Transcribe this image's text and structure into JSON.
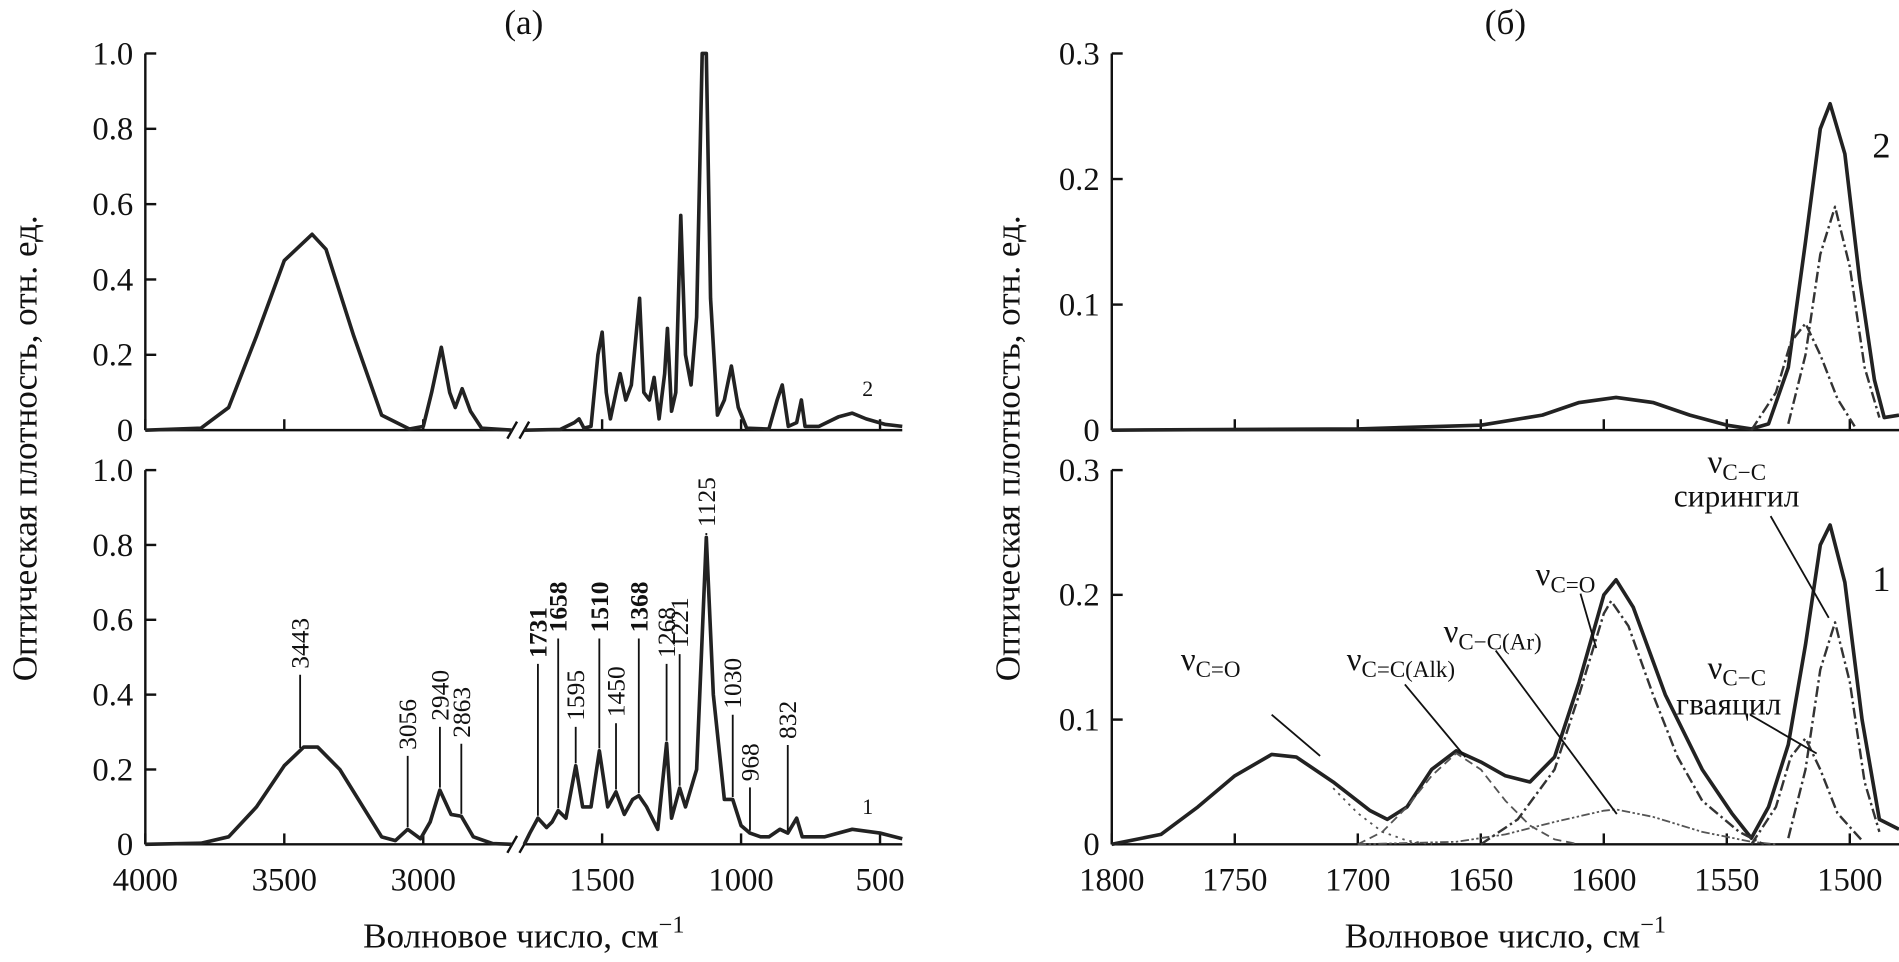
{
  "chart_data": [
    {
      "type": "line",
      "title": "(a)",
      "ylabel": "Оптическая плотность, отн. ед.",
      "xlabel": "Волновое число, см",
      "xlabel_sup": "−1",
      "xlim": [
        4000,
        420
      ],
      "x_break": [
        2680,
        1780
      ],
      "xticks": [
        4000,
        3500,
        3000,
        1500,
        1000,
        500
      ],
      "subplots": [
        {
          "ylim": [
            0,
            1
          ],
          "yticks": [
            0,
            0.2,
            0.4,
            0.6,
            0.8,
            {
              "value": 1,
              "label": "1.0"
            }
          ],
          "curve_label": "2",
          "series": [
            {
              "color": "#222222",
              "style": "solid",
              "width": 3,
              "x": [
                4000,
                3800,
                3700,
                3600,
                3500,
                3400,
                3350,
                3250,
                3150,
                3050,
                3000,
                2970,
                2935,
                2905,
                2885,
                2860,
                2830,
                2790,
                2680,
                null,
                1780,
                1650,
                1600,
                1583,
                1565,
                1540,
                1515,
                1500,
                1485,
                1470,
                1450,
                1435,
                1415,
                1395,
                1365,
                1350,
                1330,
                1313,
                1295,
                1275,
                1265,
                1250,
                1235,
                1217,
                1200,
                1180,
                1160,
                1140,
                1125,
                1110,
                1085,
                1060,
                1035,
                1010,
                980,
                900,
                870,
                852,
                830,
                800,
                783,
                770,
                720,
                650,
                600,
                550,
                480,
                420
              ],
              "values": [
                0,
                0.005,
                0.06,
                0.25,
                0.45,
                0.52,
                0.48,
                0.25,
                0.04,
                0.003,
                0.01,
                0.1,
                0.22,
                0.1,
                0.06,
                0.11,
                0.05,
                0.005,
                0,
                null,
                0,
                0.002,
                0.02,
                0.03,
                0.005,
                0.01,
                0.2,
                0.26,
                0.1,
                0.03,
                0.1,
                0.15,
                0.08,
                0.12,
                0.35,
                0.1,
                0.08,
                0.14,
                0.03,
                0.15,
                0.27,
                0.05,
                0.1,
                0.57,
                0.2,
                0.12,
                0.3,
                1,
                1,
                0.35,
                0.04,
                0.08,
                0.17,
                0.06,
                0.005,
                0.003,
                0.08,
                0.12,
                0.01,
                0.02,
                0.08,
                0.01,
                0.01,
                0.035,
                0.045,
                0.03,
                0.015,
                0.01
              ]
            }
          ]
        },
        {
          "ylim": [
            0,
            1
          ],
          "yticks": [
            0,
            0.2,
            0.4,
            0.6,
            0.8,
            {
              "value": 1,
              "label": "1.0"
            }
          ],
          "curve_label": "1",
          "series": [
            {
              "color": "#222222",
              "style": "solid",
              "width": 3,
              "x": [
                4000,
                3800,
                3700,
                3600,
                3500,
                3430,
                3380,
                3300,
                3200,
                3150,
                3100,
                3056,
                3010,
                2975,
                2940,
                2900,
                2863,
                2820,
                2750,
                2680,
                null,
                1780,
                1760,
                1731,
                1700,
                1680,
                1658,
                1630,
                1595,
                1570,
                1540,
                1510,
                1480,
                1450,
                1420,
                1390,
                1368,
                1340,
                1300,
                1268,
                1250,
                1221,
                1200,
                1160,
                1125,
                1100,
                1060,
                1030,
                1000,
                968,
                930,
                900,
                860,
                832,
                800,
                780,
                700,
                600,
                500,
                420
              ],
              "values": [
                0,
                0.003,
                0.02,
                0.1,
                0.21,
                0.26,
                0.26,
                0.2,
                0.08,
                0.02,
                0.01,
                0.04,
                0.015,
                0.06,
                0.145,
                0.08,
                0.075,
                0.02,
                0.002,
                0,
                null,
                0,
                0.03,
                0.07,
                0.045,
                0.06,
                0.09,
                0.07,
                0.21,
                0.1,
                0.1,
                0.25,
                0.1,
                0.14,
                0.08,
                0.12,
                0.13,
                0.1,
                0.04,
                0.27,
                0.07,
                0.15,
                0.1,
                0.2,
                0.82,
                0.4,
                0.12,
                0.12,
                0.05,
                0.03,
                0.02,
                0.02,
                0.04,
                0.03,
                0.07,
                0.02,
                0.02,
                0.04,
                0.03,
                0.015
              ]
            }
          ],
          "peaks": [
            {
              "value": 3443,
              "bold": false
            },
            {
              "value": 3056,
              "bold": false
            },
            {
              "value": 2940,
              "bold": false
            },
            {
              "value": 2863,
              "bold": false
            },
            {
              "value": 1731,
              "bold": true
            },
            {
              "value": 1658,
              "bold": true
            },
            {
              "value": 1595,
              "bold": false
            },
            {
              "value": 1510,
              "bold": true
            },
            {
              "value": 1450,
              "bold": false
            },
            {
              "value": 1368,
              "bold": true
            },
            {
              "value": 1268,
              "bold": false
            },
            {
              "value": 1221,
              "bold": false
            },
            {
              "value": 1125,
              "bold": false
            },
            {
              "value": 1030,
              "bold": false
            },
            {
              "value": 968,
              "bold": false
            },
            {
              "value": 832,
              "bold": false
            }
          ]
        }
      ]
    },
    {
      "type": "line",
      "title": "(б)",
      "ylabel": "Оптическая плотность, отн. ед.",
      "xlabel": "Волновое число, см",
      "xlabel_sup": "−1",
      "xlim": [
        1800,
        1480
      ],
      "xticks": [
        1800,
        1750,
        1700,
        1650,
        1600,
        1550,
        1500
      ],
      "subplots": [
        {
          "ylim": [
            0,
            0.3
          ],
          "yticks": [
            0,
            0.1,
            0.2,
            0.3
          ],
          "curve_label": "2",
          "series": [
            {
              "color": "#222222",
              "style": "solid",
              "width": 3,
              "x": [
                1800,
                1700,
                1650,
                1625,
                1610,
                1595,
                1580,
                1565,
                1550,
                1540,
                1533,
                1525,
                1518,
                1512,
                1508,
                1502,
                1496,
                1490,
                1486,
                1480
              ],
              "values": [
                0,
                0.001,
                0.004,
                0.012,
                0.022,
                0.026,
                0.022,
                0.012,
                0.004,
                0.001,
                0.005,
                0.05,
                0.15,
                0.24,
                0.26,
                0.22,
                0.12,
                0.04,
                0.01,
                0.012
              ]
            },
            {
              "color": "#333333",
              "style": "dashdot",
              "width": 2,
              "x": [
                1540,
                1530,
                1524,
                1518,
                1512,
                1505,
                1498
              ],
              "values": [
                0,
                0.03,
                0.07,
                0.085,
                0.06,
                0.025,
                0.003
              ]
            },
            {
              "color": "#333333",
              "style": "dashdot",
              "width": 2,
              "x": [
                1525,
                1518,
                1512,
                1506,
                1500,
                1494,
                1488
              ],
              "values": [
                0.005,
                0.06,
                0.14,
                0.178,
                0.13,
                0.05,
                0.01
              ]
            }
          ]
        },
        {
          "ylim": [
            0,
            0.3
          ],
          "yticks": [
            0,
            0.1,
            0.2,
            0.3
          ],
          "curve_label": "1",
          "series": [
            {
              "color": "#222222",
              "style": "solid",
              "width": 3,
              "x": [
                1800,
                1780,
                1765,
                1750,
                1735,
                1725,
                1710,
                1695,
                1688,
                1680,
                1670,
                1660,
                1650,
                1640,
                1630,
                1620,
                1610,
                1600,
                1595,
                1588,
                1575,
                1560,
                1548,
                1540,
                1533,
                1525,
                1518,
                1512,
                1508,
                1502,
                1495,
                1488,
                1480
              ],
              "values": [
                0,
                0.008,
                0.03,
                0.055,
                0.072,
                0.07,
                0.05,
                0.027,
                0.02,
                0.03,
                0.06,
                0.075,
                0.066,
                0.055,
                0.05,
                0.07,
                0.13,
                0.2,
                0.212,
                0.19,
                0.12,
                0.06,
                0.025,
                0.005,
                0.03,
                0.08,
                0.16,
                0.24,
                0.256,
                0.21,
                0.1,
                0.02,
                0.012
              ]
            },
            {
              "color": "#555555",
              "style": "dotted",
              "width": 1.5,
              "x": [
                1710,
                1700,
                1690,
                1680,
                1670
              ],
              "values": [
                0.045,
                0.025,
                0.01,
                0.003,
                0
              ]
            },
            {
              "color": "#555555",
              "style": "dashed",
              "width": 1.5,
              "x": [
                1700,
                1690,
                1680,
                1670,
                1660,
                1650,
                1640,
                1630,
                1620,
                1610
              ],
              "values": [
                0,
                0.01,
                0.03,
                0.055,
                0.073,
                0.06,
                0.035,
                0.015,
                0.004,
                0
              ]
            },
            {
              "color": "#555555",
              "style": "dashdotdot",
              "width": 1.5,
              "x": [
                1700,
                1660,
                1640,
                1620,
                1600,
                1595,
                1580,
                1560,
                1540,
                1530
              ],
              "values": [
                0,
                0.002,
                0.008,
                0.018,
                0.027,
                0.028,
                0.022,
                0.01,
                0.002,
                0
              ]
            },
            {
              "color": "#333333",
              "style": "dashdot",
              "width": 2,
              "x": [
                1650,
                1635,
                1620,
                1610,
                1600,
                1597,
                1590,
                1580,
                1570,
                1560,
                1545,
                1535
              ],
              "values": [
                0,
                0.02,
                0.06,
                0.12,
                0.185,
                0.195,
                0.175,
                0.12,
                0.07,
                0.035,
                0.01,
                0
              ]
            },
            {
              "color": "#333333",
              "style": "dashdot",
              "width": 2,
              "x": [
                1540,
                1530,
                1524,
                1518,
                1512,
                1505,
                1495
              ],
              "values": [
                0,
                0.03,
                0.07,
                0.085,
                0.06,
                0.025,
                0.003
              ]
            },
            {
              "color": "#333333",
              "style": "dashdot",
              "width": 2,
              "x": [
                1525,
                1518,
                1512,
                1506,
                1500,
                1494,
                1488
              ],
              "values": [
                0.005,
                0.06,
                0.14,
                0.178,
                0.13,
                0.05,
                0.01
              ]
            }
          ],
          "annotations": [
            {
              "symbol": "ν",
              "sub": "C=O"
            },
            {
              "symbol": "ν",
              "sub": "C=C(Alk)"
            },
            {
              "symbol": "ν",
              "sub": "C−C(Ar)"
            },
            {
              "symbol": "ν",
              "sub": "C=O"
            },
            {
              "symbol": "ν",
              "sub": "C−C",
              "note": "сирингил"
            },
            {
              "symbol": "ν",
              "sub": "C−C",
              "note": "гваяцил"
            }
          ]
        }
      ]
    }
  ]
}
